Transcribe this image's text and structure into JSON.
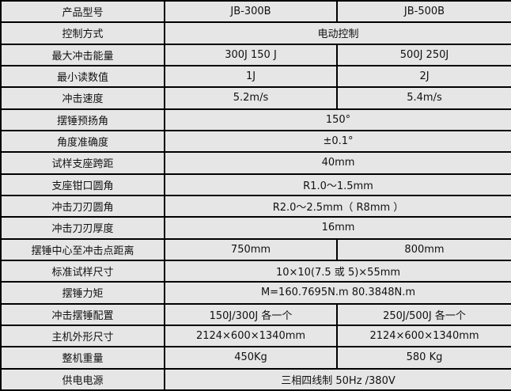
{
  "rows": [
    {
      "label": "产品型号",
      "values": [
        "JB-300B",
        "JB-500B"
      ]
    },
    {
      "label": "控制方式",
      "values": [
        "电动控制"
      ]
    },
    {
      "label": "最大冲击能量",
      "values": [
        "300J 150 J",
        "500J 250J"
      ]
    },
    {
      "label": "最小读数值",
      "values": [
        "1J",
        "2J"
      ]
    },
    {
      "label": "冲击速度",
      "values": [
        "5.2m/s",
        "5.4m/s"
      ]
    },
    {
      "label": "摆锤预扬角",
      "values": [
        "150°"
      ]
    },
    {
      "label": "角度准确度",
      "values": [
        "±0.1°"
      ]
    },
    {
      "label": "试样支座跨距",
      "values": [
        "40mm"
      ]
    },
    {
      "label": "支座钳口圆角",
      "values": [
        "R1.0～1.5mm"
      ]
    },
    {
      "label": "冲击刀刃圆角",
      "values": [
        "R2.0～2.5mm（  R8mm ）"
      ]
    },
    {
      "label": "冲击刀刃厚度",
      "values": [
        "16mm"
      ]
    },
    {
      "label": "摆锤中心至冲击点距离",
      "values": [
        "750mm",
        "800mm"
      ]
    },
    {
      "label": "标准试样尺寸",
      "values": [
        "10×10(7.5 或 5)×55mm"
      ]
    },
    {
      "label": "摆锤力矩",
      "values": [
        "M=160.7695N.m     80.3848N.m"
      ]
    },
    {
      "label": "冲击摆锤配置",
      "values": [
        "150J/300J 各一个",
        "250J/500J 各一个"
      ]
    },
    {
      "label": "主机外形尺寸",
      "values": [
        "2124×600×1340mm",
        "2124×600×1340mm"
      ]
    },
    {
      "label": "整机重量",
      "values": [
        "450Kg",
        "580 Kg"
      ]
    },
    {
      "label": "供电电源",
      "values": [
        "三相四线制 50Hz /380V"
      ]
    }
  ]
}
